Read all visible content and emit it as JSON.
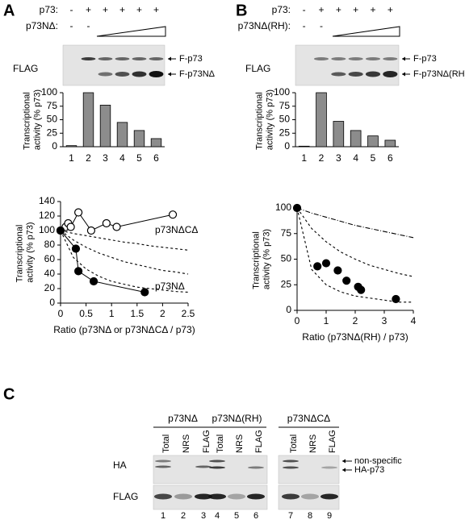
{
  "panels": {
    "A": {
      "letter": "A",
      "treatments": [
        {
          "label": "p73:",
          "signs": [
            "-",
            "+",
            "+",
            "+",
            "+",
            "+"
          ]
        },
        {
          "label": "p73NΔ:",
          "signs": [
            "-",
            "-"
          ]
        }
      ],
      "blot": {
        "label": "FLAG",
        "bands": [
          "F-p73",
          "F-p73NΔ"
        ]
      }
    },
    "B": {
      "letter": "B",
      "treatments": [
        {
          "label": "p73:",
          "signs": [
            "-",
            "+",
            "+",
            "+",
            "+",
            "+"
          ]
        },
        {
          "label": "p73NΔ(RH):",
          "signs": [
            "-",
            "-"
          ]
        }
      ],
      "blot": {
        "label": "FLAG",
        "bands": [
          "F-p73",
          "F-p73NΔ(RH)"
        ]
      }
    },
    "C": {
      "letter": "C",
      "groups": [
        "p73NΔ",
        "p73NΔ(RH)",
        "p73NΔCΔ"
      ],
      "lanes": [
        "Total",
        "NRS",
        "FLAG",
        "Total",
        "NRS",
        "FLAG",
        "Total",
        "NRS",
        "FLAG"
      ],
      "rows": [
        "HA",
        "FLAG"
      ],
      "annotations": [
        "non-specific",
        "HA-p73"
      ],
      "lane_numbers": [
        1,
        2,
        3,
        4,
        5,
        6,
        7,
        8,
        9
      ]
    }
  },
  "chart_data": [
    {
      "type": "bar",
      "ylabel": "Transcriptional activity (% p73)",
      "categories": [
        "1",
        "2",
        "3",
        "4",
        "5",
        "6"
      ],
      "values": [
        2,
        100,
        77,
        45,
        30,
        15
      ],
      "color": "#8c8c8c",
      "ylim": [
        0,
        100
      ],
      "yticks": [
        0,
        25,
        50,
        75,
        100
      ]
    },
    {
      "type": "bar",
      "ylabel": "Transcriptional activity (% p73)",
      "categories": [
        "1",
        "2",
        "3",
        "4",
        "5",
        "6"
      ],
      "values": [
        1,
        100,
        47,
        30,
        20,
        12
      ],
      "color": "#8c8c8c",
      "ylim": [
        0,
        100
      ],
      "yticks": [
        0,
        25,
        50,
        75,
        100
      ]
    },
    {
      "type": "line",
      "xlabel": "Ratio (p73NΔ or p73NΔCΔ / p73)",
      "ylabel": "Transcriptional activity (% p73)",
      "xlim": [
        0,
        2.5
      ],
      "xticks": [
        0,
        0.5,
        1,
        1.5,
        2,
        2.5
      ],
      "ylim": [
        0,
        140
      ],
      "yticks": [
        0,
        20,
        40,
        60,
        80,
        100,
        120,
        140
      ],
      "series": [
        {
          "name": "p73NΔCΔ",
          "color": "#000000",
          "marker": "open",
          "line": "solid",
          "x": [
            0,
            0.1,
            0.15,
            0.2,
            0.35,
            0.6,
            0.9,
            1.1,
            2.2
          ],
          "values": [
            100,
            105,
            110,
            105,
            125,
            100,
            110,
            105,
            122
          ]
        },
        {
          "name": "p73NΔ",
          "color": "#000000",
          "marker": "filled",
          "line": "solid",
          "x": [
            0,
            0.3,
            0.35,
            0.65,
            1.65
          ],
          "values": [
            100,
            75,
            44,
            30,
            15
          ]
        },
        {
          "color": "#000000",
          "marker": "none",
          "line": "dashed",
          "x": [
            0,
            0.25,
            0.5,
            0.75,
            1,
            1.25,
            1.5,
            1.75,
            2,
            2.25,
            2.5
          ],
          "values": [
            100,
            96,
            93,
            90,
            87,
            84,
            82,
            79,
            77,
            75,
            73
          ]
        },
        {
          "color": "#000000",
          "marker": "none",
          "line": "dashed",
          "x": [
            0,
            0.25,
            0.5,
            0.75,
            1,
            1.25,
            1.5,
            1.75,
            2,
            2.25,
            2.5
          ],
          "values": [
            100,
            87,
            77,
            69,
            63,
            57,
            53,
            49,
            45,
            43,
            40
          ]
        },
        {
          "color": "#000000",
          "marker": "none",
          "line": "dashed",
          "x": [
            0,
            0.25,
            0.5,
            0.75,
            1,
            1.25,
            1.5,
            1.75,
            2,
            2.25,
            2.5
          ],
          "values": [
            100,
            63,
            47,
            37,
            30,
            26,
            22,
            20,
            18,
            16,
            15
          ]
        }
      ]
    },
    {
      "type": "line",
      "xlabel": "Ratio (p73NΔ(RH) / p73)",
      "ylabel": "Transcriptional activity (% p73)",
      "xlim": [
        0,
        4
      ],
      "xticks": [
        0,
        1,
        2,
        3,
        4
      ],
      "ylim": [
        0,
        100
      ],
      "yticks": [
        0,
        25,
        50,
        75,
        100
      ],
      "series": [
        {
          "color": "#000000",
          "marker": "filled",
          "line": "none",
          "x": [
            0,
            0.7,
            1,
            1.4,
            1.7,
            2.1,
            2.2,
            3.4
          ],
          "values": [
            100,
            43,
            46,
            39,
            29,
            23,
            20,
            11
          ]
        },
        {
          "color": "#000000",
          "marker": "none",
          "line": "dashdot",
          "x": [
            0,
            0.5,
            1,
            1.5,
            2,
            2.5,
            3,
            3.5,
            4
          ],
          "values": [
            100,
            95,
            91,
            87,
            83,
            80,
            77,
            74,
            71
          ]
        },
        {
          "color": "#000000",
          "marker": "none",
          "line": "dashed",
          "x": [
            0,
            0.5,
            1,
            1.5,
            2,
            2.5,
            3,
            3.5,
            4
          ],
          "values": [
            100,
            80,
            67,
            57,
            50,
            44,
            40,
            36,
            33
          ]
        },
        {
          "color": "#000000",
          "marker": "none",
          "line": "dashed",
          "x": [
            0,
            0.5,
            1,
            1.5,
            2,
            2.5,
            3,
            3.5,
            4
          ],
          "values": [
            100,
            40,
            25,
            18,
            14,
            12,
            10,
            8,
            8
          ]
        }
      ]
    }
  ]
}
